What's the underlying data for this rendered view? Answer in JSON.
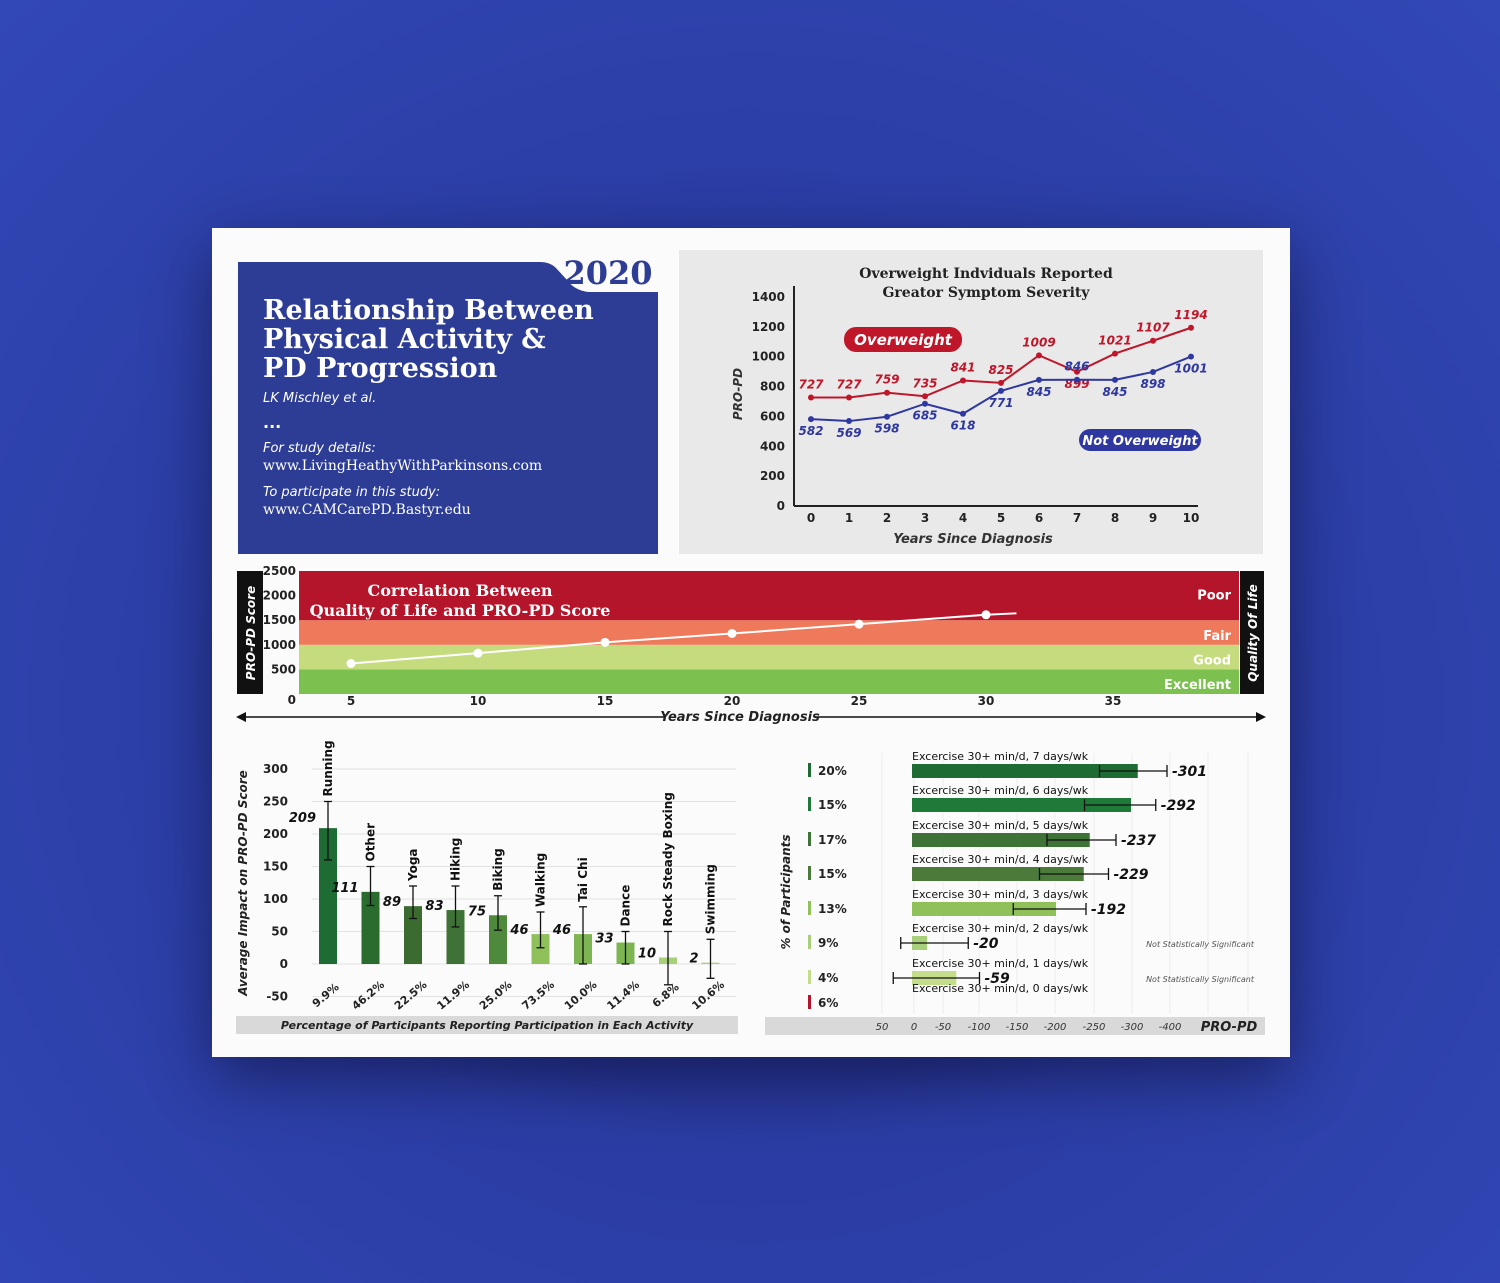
{
  "colors": {
    "navy": "#2d3d96",
    "red": "#c0162a",
    "blue": "#2f38a0",
    "poor": "#b5152a",
    "fair": "#ee7a5b",
    "good": "#c5dc7e",
    "excellent": "#7cc150",
    "dkgreen": "#1e6b34",
    "midgreen": "#3f7d36",
    "ltgreen": "#8fc05a"
  },
  "title_card": {
    "year": "2020",
    "title_lines": [
      "Relationship Between",
      "Physical Activity &",
      "PD Progression"
    ],
    "author": "LK Mischley et al.",
    "dots": "...",
    "details_label": "For study details:",
    "details_url": "www.LivingHeathyWithParkinsons.com",
    "participate_label": "To participate in this study:",
    "participate_url": "www.CAMCarePD.Bastyr.edu"
  },
  "line_chart": {
    "chart_data": {
      "type": "line",
      "title": "Overweight Indviduals Reported Greator Symptom Severity",
      "title_lines": [
        "Overweight Indviduals Reported",
        "Greator Symptom Severity"
      ],
      "xlabel": "Years Since Diagnosis",
      "ylabel": "PRO-PD",
      "x": [
        0,
        1,
        2,
        3,
        4,
        5,
        6,
        7,
        8,
        9,
        10
      ],
      "ylim": [
        0,
        1400
      ],
      "yticks": [
        0,
        200,
        400,
        600,
        800,
        1000,
        1200,
        1400
      ],
      "series": [
        {
          "name": "Overweight",
          "color": "#c0162a",
          "values": [
            727,
            727,
            759,
            735,
            841,
            825,
            1009,
            899,
            1021,
            1107,
            1194
          ]
        },
        {
          "name": "Not Overweight",
          "color": "#2f38a0",
          "values": [
            582,
            569,
            598,
            685,
            618,
            771,
            845,
            846,
            845,
            898,
            1001
          ]
        }
      ]
    }
  },
  "band_chart": {
    "chart_data": {
      "type": "line",
      "title": "Correlation Between Quality of Life and PRO-PD Score",
      "title_lines": [
        "Correlation Between",
        "Quality of Life and PRO-PD Score"
      ],
      "xlabel": "Years Since Diagnosis",
      "ylabel": "PRO-PD Score",
      "y2label": "Quality Of Life",
      "ylim": [
        0,
        2500
      ],
      "yticks": [
        0,
        500,
        1000,
        1500,
        2000,
        2500
      ],
      "xticks": [
        5,
        10,
        15,
        20,
        25,
        30,
        35
      ],
      "xlim": [
        0,
        38
      ],
      "x": [
        5,
        10,
        15,
        20,
        25,
        30
      ],
      "values": [
        620,
        830,
        1050,
        1230,
        1420,
        1610
      ],
      "line_end": {
        "x": 31.2,
        "y": 1640
      },
      "bands": [
        {
          "label": "Excellent",
          "from": 0,
          "to": 500,
          "color": "#7cc150"
        },
        {
          "label": "Good",
          "from": 500,
          "to": 1000,
          "color": "#c5dc7e"
        },
        {
          "label": "Fair",
          "from": 1000,
          "to": 1500,
          "color": "#ee7a5b"
        },
        {
          "label": "Poor",
          "from": 1500,
          "to": 2500,
          "color": "#b5152a"
        }
      ]
    }
  },
  "activity_chart": {
    "chart_data": {
      "type": "bar",
      "ylabel": "Average Impact on PRO-PD Score",
      "xlabel": "Percentage of Participants Reporting Participation in Each Activity",
      "ylim": [
        -50,
        300
      ],
      "yticks": [
        -50,
        0,
        50,
        100,
        150,
        200,
        250,
        300
      ],
      "categories": [
        "Running",
        "Other",
        "Yoga",
        "Hiking",
        "Biking",
        "Walking",
        "Tai Chi",
        "Dance",
        "Rock Steady Boxing",
        "Swimming"
      ],
      "values": [
        209,
        111,
        89,
        83,
        75,
        46,
        46,
        33,
        10,
        2
      ],
      "errors_low": [
        160,
        90,
        70,
        57,
        52,
        25,
        0,
        0,
        -32,
        -22
      ],
      "errors_high": [
        250,
        150,
        120,
        120,
        105,
        80,
        88,
        50,
        50,
        38
      ],
      "participation": [
        "9.9%",
        "46.2%",
        "22.5%",
        "11.9%",
        "25.0%",
        "73.5%",
        "10.0%",
        "11.4%",
        "6.8%",
        "10.6%"
      ],
      "colors": [
        "#1e6b34",
        "#2a6b2e",
        "#3b6b2e",
        "#3f7236",
        "#4f8a3c",
        "#8fc05a",
        "#7db552",
        "#7db552",
        "#a8d07a",
        "#a8d07a"
      ]
    }
  },
  "exercise_chart": {
    "chart_data": {
      "type": "bar",
      "orientation": "horizontal",
      "xlabel": "PRO-PD",
      "ylabel": "% of Participants",
      "xlim": [
        50,
        -400
      ],
      "xticks": [
        50,
        0,
        -50,
        -100,
        -150,
        -200,
        -250,
        -300,
        -400
      ],
      "categories": [
        "Excercise 30+ min/d, 7 days/wk",
        "Excercise 30+ min/d, 6 days/wk",
        "Excercise 30+ min/d, 5 days/wk",
        "Excercise 30+ min/d, 4 days/wk",
        "Excercise 30+ min/d, 3 days/wk",
        "Excercise 30+ min/d, 2 days/wk",
        "Excercise 30+ min/d, 1 days/wk",
        "Excercise 30+ min/d, 0 days/wk"
      ],
      "values": [
        -301,
        -292,
        -237,
        -229,
        -192,
        -20,
        -59,
        null
      ],
      "value_labels": [
        "-301",
        "-292",
        "-237",
        "-229",
        "-192",
        "-20",
        "-59",
        ""
      ],
      "errors_low": [
        -250,
        -230,
        -180,
        -170,
        -135,
        15,
        25,
        null
      ],
      "errors_high": [
        -340,
        -325,
        -272,
        -262,
        -232,
        -75,
        -90,
        null
      ],
      "participants": [
        "20%",
        "15%",
        "17%",
        "15%",
        "13%",
        "9%",
        "4%",
        "6%"
      ],
      "colors": [
        "#1e6b34",
        "#1f7a3a",
        "#3f7236",
        "#4b7a3a",
        "#8fc05a",
        "#a8d07a",
        "#c3dd8a",
        "#b5152a"
      ],
      "notes": [
        "",
        "",
        "",
        "",
        "",
        "Not Statistically Significant",
        "Not Statistically Significant",
        ""
      ]
    }
  }
}
